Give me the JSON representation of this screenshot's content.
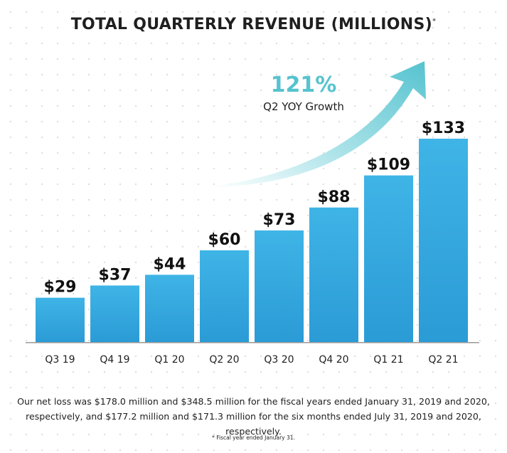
{
  "chart_data": {
    "type": "bar",
    "title": "TOTAL QUARTERLY REVENUE (MILLIONS)",
    "title_marker": "*",
    "categories": [
      "Q3 19",
      "Q4 19",
      "Q1 20",
      "Q2 20",
      "Q3 20",
      "Q4 20",
      "Q1 21",
      "Q2 21"
    ],
    "values": [
      29,
      37,
      44,
      60,
      73,
      88,
      109,
      133
    ],
    "data_labels": [
      "$29",
      "$37",
      "$44",
      "$60",
      "$73",
      "$88",
      "$109",
      "$133"
    ],
    "xlabel": "",
    "ylabel": "",
    "ylim": [
      0,
      150
    ],
    "grid": false,
    "bar_color": "#33a9dd",
    "annotation": {
      "value": "121%",
      "label": "Q2 YOY Growth",
      "color": "#56c3cf"
    }
  },
  "footnote": "Our net loss was $178.0 million and $348.5 million for the fiscal years ended January 31, 2019 and 2020, respectively, and $177.2 million and $171.3 million for the six months ended July 31, 2019 and 2020, respectively.",
  "fine_print": "* Fiscal year ended January 31."
}
